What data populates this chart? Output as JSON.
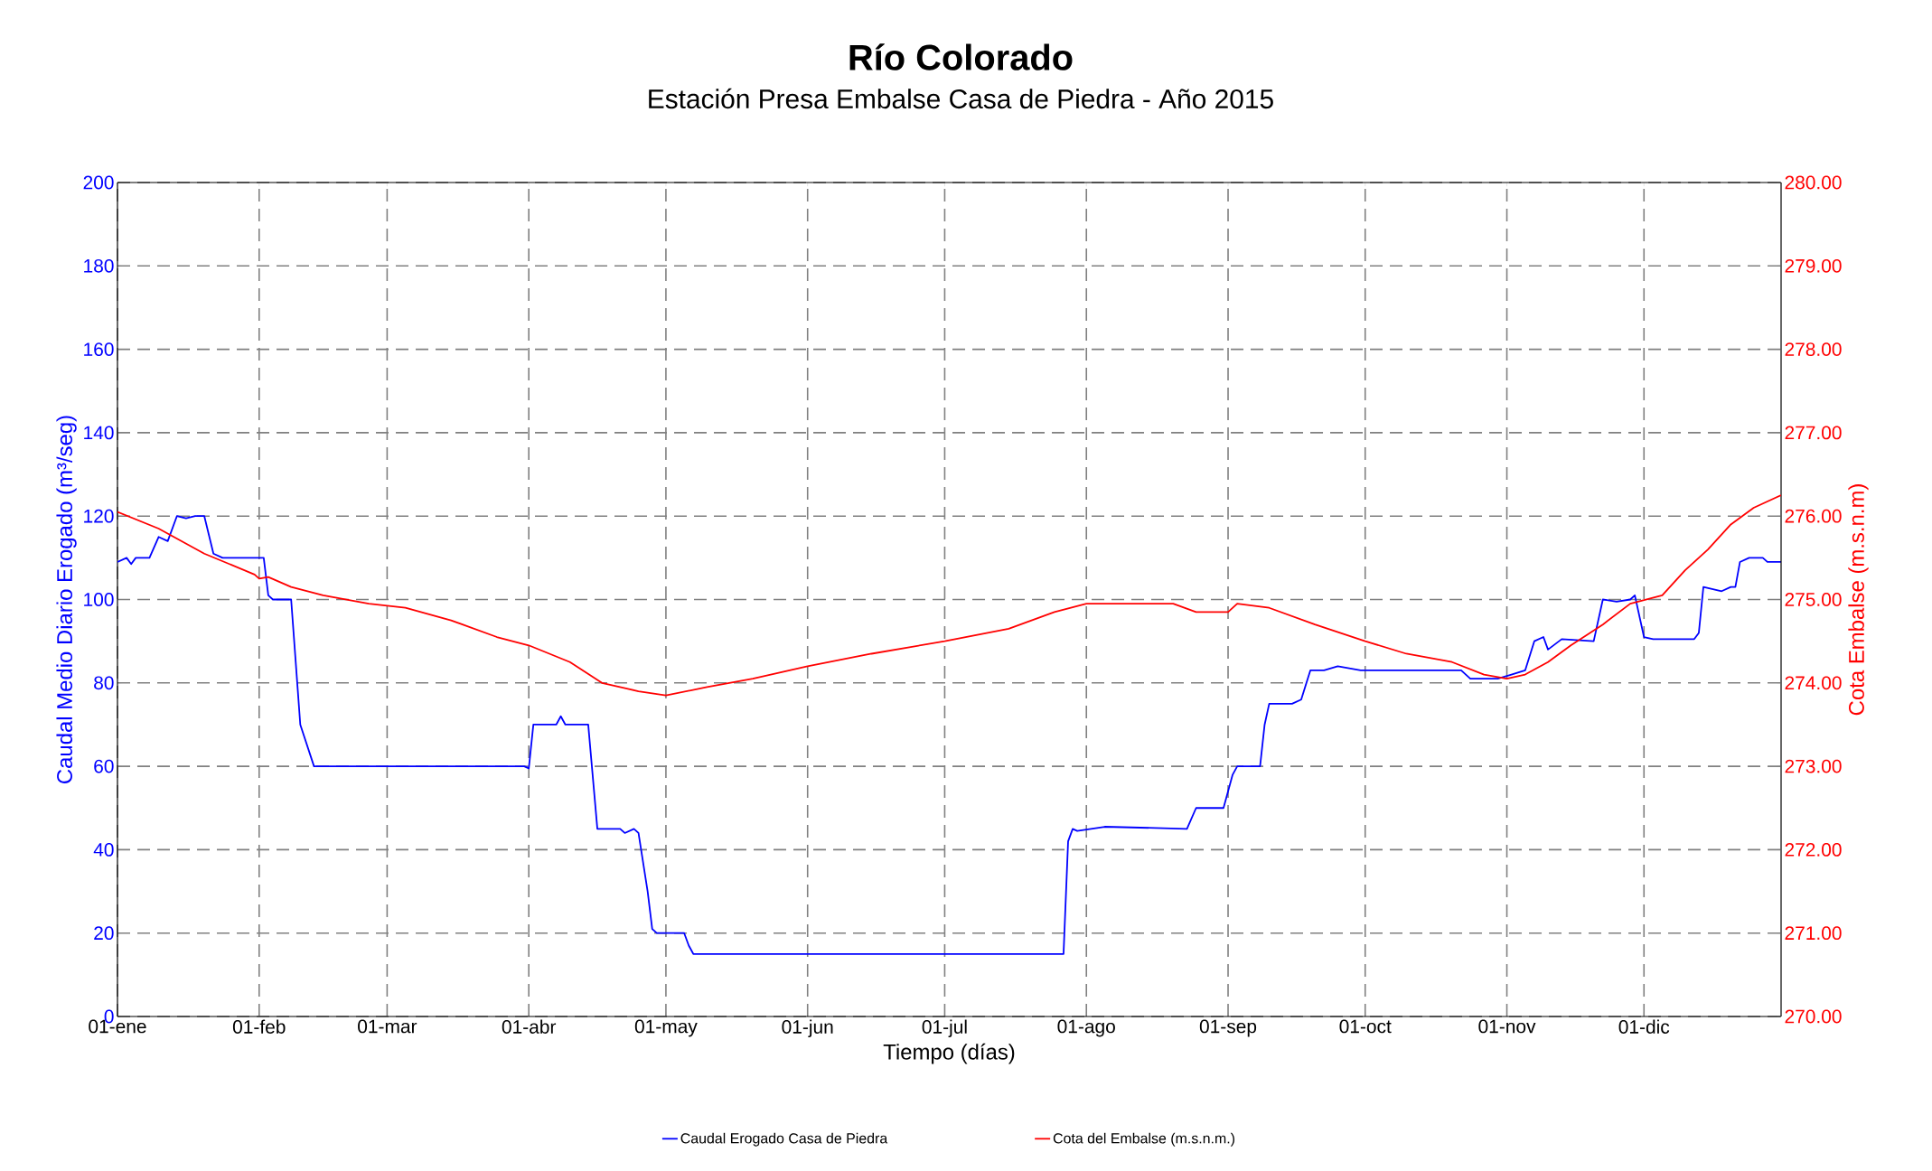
{
  "chart_data": {
    "type": "line",
    "title": "Río Colorado",
    "subtitle": "Estación Presa Embalse Casa de Piedra - Año 2015",
    "xlabel": "Tiempo (días)",
    "ylabel": "Caudal Medio Diario Erogado (m³/seg)",
    "y2label": "Cota Embalse (m.s.n.m)",
    "xlim": [
      "2015-01-01",
      "2015-12-31"
    ],
    "xticks": [
      {
        "value": "2015-01-01",
        "label": "01-ene"
      },
      {
        "value": "2015-02-01",
        "label": "01-feb"
      },
      {
        "value": "2015-03-01",
        "label": "01-mar"
      },
      {
        "value": "2015-04-01",
        "label": "01-abr"
      },
      {
        "value": "2015-05-01",
        "label": "01-may"
      },
      {
        "value": "2015-06-01",
        "label": "01-jun"
      },
      {
        "value": "2015-07-01",
        "label": "01-jul"
      },
      {
        "value": "2015-08-01",
        "label": "01-ago"
      },
      {
        "value": "2015-09-01",
        "label": "01-sep"
      },
      {
        "value": "2015-10-01",
        "label": "01-oct"
      },
      {
        "value": "2015-11-01",
        "label": "01-nov"
      },
      {
        "value": "2015-12-01",
        "label": "01-dic"
      }
    ],
    "ylim": [
      0,
      200
    ],
    "yticks": [
      0,
      20,
      40,
      60,
      80,
      100,
      120,
      140,
      160,
      180,
      200
    ],
    "y2lim": [
      270,
      280
    ],
    "y2ticks": [
      {
        "value": 270,
        "label": "270.00"
      },
      {
        "value": 271,
        "label": "271.00"
      },
      {
        "value": 272,
        "label": "272.00"
      },
      {
        "value": 273,
        "label": "273.00"
      },
      {
        "value": 274,
        "label": "274.00"
      },
      {
        "value": 275,
        "label": "275.00"
      },
      {
        "value": 276,
        "label": "276.00"
      },
      {
        "value": 277,
        "label": "277.00"
      },
      {
        "value": 278,
        "label": "278.00"
      },
      {
        "value": 279,
        "label": "279.00"
      },
      {
        "value": 280,
        "label": "280.00"
      }
    ],
    "grid": true,
    "legend": "bottom",
    "series": [
      {
        "name": "Caudal Erogado Casa de Piedra",
        "color": "#0000ff",
        "x": [
          "2015-01-01",
          "2015-01-03",
          "2015-01-04",
          "2015-01-05",
          "2015-01-08",
          "2015-01-10",
          "2015-01-12",
          "2015-01-14",
          "2015-01-16",
          "2015-01-18",
          "2015-01-20",
          "2015-01-22",
          "2015-01-24",
          "2015-01-31",
          "2015-02-02",
          "2015-02-03",
          "2015-02-04",
          "2015-02-08",
          "2015-02-10",
          "2015-02-13",
          "2015-02-20",
          "2015-03-01",
          "2015-03-31",
          "2015-04-01",
          "2015-04-02",
          "2015-04-07",
          "2015-04-08",
          "2015-04-09",
          "2015-04-14",
          "2015-04-16",
          "2015-04-21",
          "2015-04-22",
          "2015-04-24",
          "2015-04-25",
          "2015-04-27",
          "2015-04-28",
          "2015-04-29",
          "2015-05-05",
          "2015-05-06",
          "2015-05-07",
          "2015-07-27",
          "2015-07-28",
          "2015-07-29",
          "2015-07-30",
          "2015-08-05",
          "2015-08-23",
          "2015-08-25",
          "2015-08-31",
          "2015-09-02",
          "2015-09-03",
          "2015-09-08",
          "2015-09-09",
          "2015-09-10",
          "2015-09-15",
          "2015-09-17",
          "2015-09-19",
          "2015-09-22",
          "2015-09-25",
          "2015-09-30",
          "2015-10-22",
          "2015-10-24",
          "2015-10-30",
          "2015-11-02",
          "2015-11-05",
          "2015-11-07",
          "2015-11-09",
          "2015-11-10",
          "2015-11-13",
          "2015-11-20",
          "2015-11-22",
          "2015-11-25",
          "2015-11-28",
          "2015-11-29",
          "2015-12-01",
          "2015-12-03",
          "2015-12-12",
          "2015-12-13",
          "2015-12-14",
          "2015-12-18",
          "2015-12-20",
          "2015-12-21",
          "2015-12-22",
          "2015-12-24",
          "2015-12-27",
          "2015-12-28",
          "2015-12-31"
        ],
        "values": [
          109,
          110,
          108.5,
          110,
          110,
          115,
          114,
          120,
          119.5,
          120,
          120,
          111,
          110,
          110,
          110,
          101,
          100,
          100,
          70,
          60,
          60,
          60,
          60,
          59.5,
          70,
          70,
          72,
          70,
          70,
          45,
          45,
          44,
          45,
          44,
          30,
          21,
          20,
          20,
          17,
          15,
          15,
          42,
          45,
          44.5,
          45.5,
          45,
          50,
          50,
          58,
          60,
          60,
          70,
          75,
          75,
          76,
          83,
          83,
          84,
          83,
          83,
          81,
          81,
          82,
          83,
          90,
          91,
          88,
          90.5,
          90,
          100,
          99.5,
          100,
          101,
          91,
          90.5,
          90.5,
          92,
          103,
          102,
          103,
          103,
          109,
          110,
          110,
          109,
          109
        ]
      },
      {
        "name": "Cota del Embalse (m.s.n.m.)",
        "color": "#ff0000",
        "axis": "y2",
        "x": [
          "2015-01-01",
          "2015-01-10",
          "2015-01-20",
          "2015-01-31",
          "2015-02-01",
          "2015-02-03",
          "2015-02-08",
          "2015-02-15",
          "2015-02-25",
          "2015-03-05",
          "2015-03-15",
          "2015-03-25",
          "2015-04-01",
          "2015-04-10",
          "2015-04-17",
          "2015-04-25",
          "2015-05-01",
          "2015-05-10",
          "2015-05-20",
          "2015-06-01",
          "2015-06-15",
          "2015-07-01",
          "2015-07-15",
          "2015-07-25",
          "2015-08-01",
          "2015-08-10",
          "2015-08-20",
          "2015-08-25",
          "2015-09-01",
          "2015-09-03",
          "2015-09-10",
          "2015-09-20",
          "2015-10-01",
          "2015-10-10",
          "2015-10-20",
          "2015-10-27",
          "2015-11-01",
          "2015-11-05",
          "2015-11-10",
          "2015-11-15",
          "2015-11-22",
          "2015-11-28",
          "2015-12-05",
          "2015-12-10",
          "2015-12-15",
          "2015-12-20",
          "2015-12-25",
          "2015-12-31"
        ],
        "values": [
          276.05,
          275.85,
          275.55,
          275.3,
          275.25,
          275.27,
          275.15,
          275.05,
          274.95,
          274.9,
          274.75,
          274.55,
          274.45,
          274.25,
          274.0,
          273.9,
          273.85,
          273.95,
          274.05,
          274.2,
          274.35,
          274.5,
          274.65,
          274.85,
          274.95,
          274.95,
          274.95,
          274.85,
          274.85,
          274.95,
          274.9,
          274.7,
          274.5,
          274.35,
          274.25,
          274.1,
          274.05,
          274.1,
          274.25,
          274.45,
          274.7,
          274.95,
          275.05,
          275.35,
          275.6,
          275.9,
          276.1,
          276.25
        ]
      }
    ]
  }
}
